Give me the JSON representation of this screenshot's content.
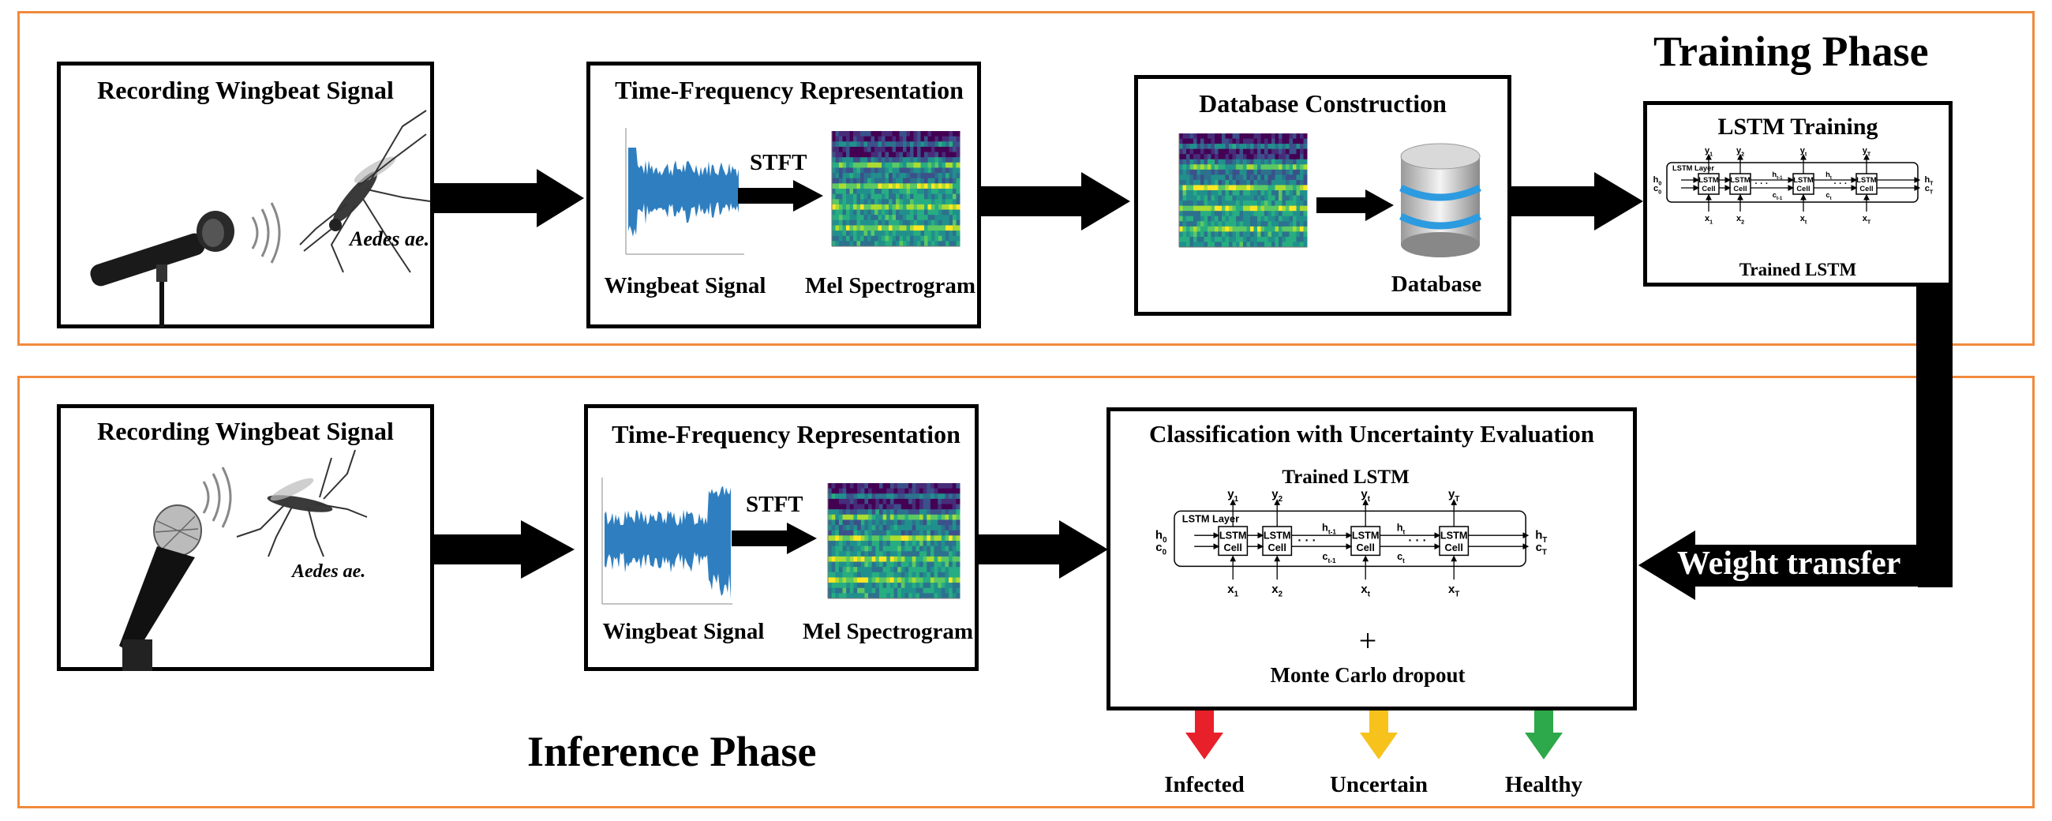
{
  "training": {
    "phase_title": "Training Phase",
    "recording": {
      "title": "Recording Wingbeat Signal",
      "species": "Aedes ae."
    },
    "tfr": {
      "title": "Time-Frequency Representation",
      "stft": "STFT",
      "signal_caption": "Wingbeat Signal",
      "spectrogram_caption": "Mel Spectrogram"
    },
    "database": {
      "title": "Database Construction",
      "db_caption": "Database"
    },
    "lstm": {
      "title": "LSTM Training",
      "caption": "Trained LSTM"
    }
  },
  "inference": {
    "phase_title": "Inference Phase",
    "recording": {
      "title": "Recording Wingbeat Signal",
      "species": "Aedes ae."
    },
    "tfr": {
      "title": "Time-Frequency Representation",
      "stft": "STFT",
      "signal_caption": "Wingbeat Signal",
      "spectrogram_caption": "Mel Spectrogram"
    },
    "classification": {
      "title": "Classification with Uncertainty Evaluation",
      "model_caption": "Trained LSTM",
      "plus": "+",
      "dropout_caption": "Monte Carlo dropout"
    },
    "outcomes": [
      {
        "label": "Infected",
        "color": "#E8202A"
      },
      {
        "label": "Uncertain",
        "color": "#F6C21B"
      },
      {
        "label": "Healthy",
        "color": "#2DA84A"
      }
    ]
  },
  "weight_transfer": "Weight  transfer",
  "lstm_diagram": {
    "layer_label": "LSTM Layer",
    "cell_label": [
      "LSTM",
      "Cell"
    ],
    "h0": "h",
    "c0": "c",
    "hT": "h",
    "cT": "c",
    "outputs": [
      "y",
      "y",
      "y",
      "y"
    ],
    "output_subs": [
      "1",
      "2",
      "t",
      "T"
    ],
    "inputs": [
      "x",
      "x",
      "x",
      "x"
    ],
    "input_subs": [
      "1",
      "2",
      "t",
      "T"
    ],
    "state_sub_zero": "0",
    "state_sub_T": "T",
    "hidden_prev": "h",
    "hidden_prev_sub": "t-1",
    "cell_prev": "c",
    "cell_prev_sub": "t-1",
    "hidden_cur": "h",
    "hidden_cur_sub": "t",
    "cell_cur": "c",
    "cell_cur_sub": "t",
    "ellipsis": "· · ·"
  },
  "colors": {
    "frame": "#F08A3C",
    "signal": "#2F7FC0",
    "database": "#2D9BE0",
    "arrow": "#000000"
  }
}
